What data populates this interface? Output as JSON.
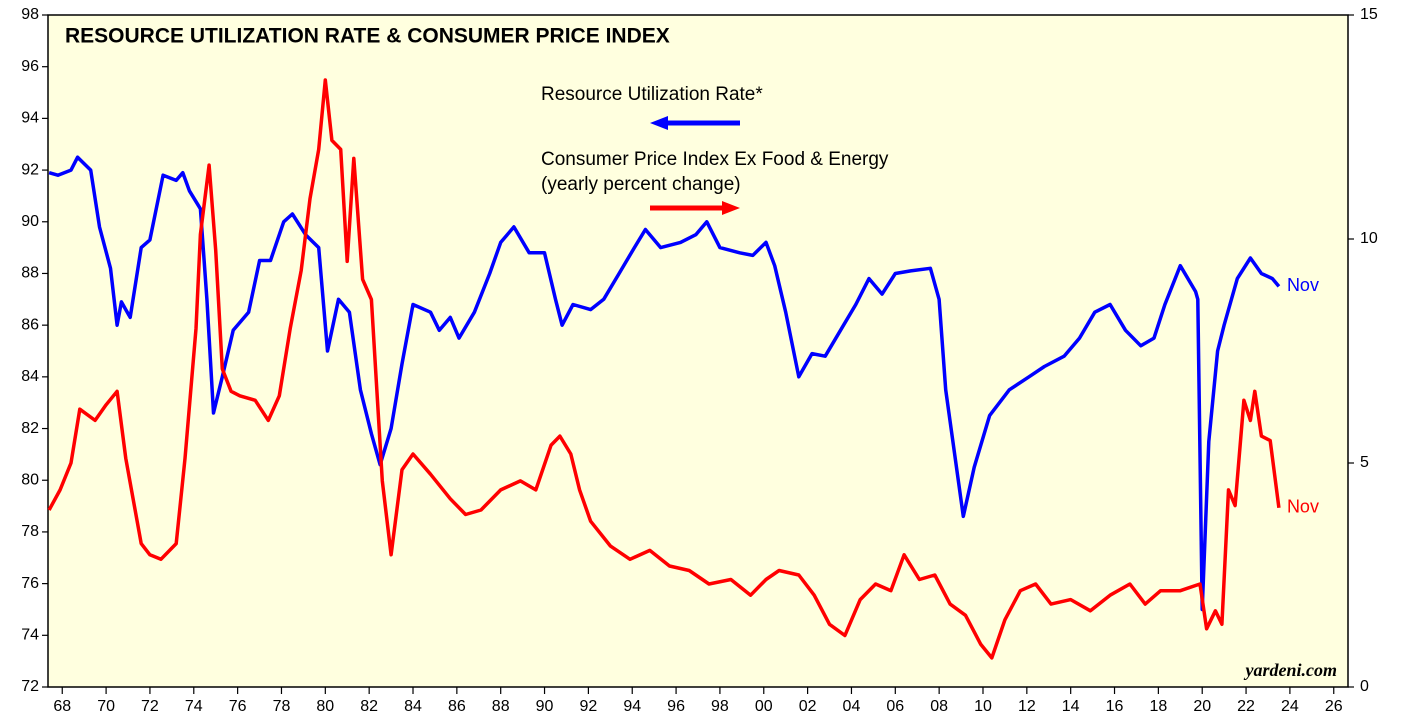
{
  "chart_data": {
    "type": "line",
    "title": "RESOURCE UTILIZATION RATE & CONSUMER PRICE INDEX",
    "legend_note": "(yearly percent change)",
    "watermark": "yardeni.com",
    "xlim": [
      1967.35,
      2026.65
    ],
    "xticks": [
      {
        "value": 1968,
        "label": "68"
      },
      {
        "value": 1970,
        "label": "70"
      },
      {
        "value": 1972,
        "label": "72"
      },
      {
        "value": 1974,
        "label": "74"
      },
      {
        "value": 1976,
        "label": "76"
      },
      {
        "value": 1978,
        "label": "78"
      },
      {
        "value": 1980,
        "label": "80"
      },
      {
        "value": 1982,
        "label": "82"
      },
      {
        "value": 1984,
        "label": "84"
      },
      {
        "value": 1986,
        "label": "86"
      },
      {
        "value": 1988,
        "label": "88"
      },
      {
        "value": 1990,
        "label": "90"
      },
      {
        "value": 1992,
        "label": "92"
      },
      {
        "value": 1994,
        "label": "94"
      },
      {
        "value": 1996,
        "label": "96"
      },
      {
        "value": 1998,
        "label": "98"
      },
      {
        "value": 2000,
        "label": "00"
      },
      {
        "value": 2002,
        "label": "02"
      },
      {
        "value": 2004,
        "label": "04"
      },
      {
        "value": 2006,
        "label": "06"
      },
      {
        "value": 2008,
        "label": "08"
      },
      {
        "value": 2010,
        "label": "10"
      },
      {
        "value": 2012,
        "label": "12"
      },
      {
        "value": 2014,
        "label": "14"
      },
      {
        "value": 2016,
        "label": "16"
      },
      {
        "value": 2018,
        "label": "18"
      },
      {
        "value": 2020,
        "label": "20"
      },
      {
        "value": 2022,
        "label": "22"
      },
      {
        "value": 2024,
        "label": "24"
      },
      {
        "value": 2026,
        "label": "26"
      }
    ],
    "ylim": [
      72,
      98
    ],
    "yticks": [
      72,
      74,
      76,
      78,
      80,
      82,
      84,
      86,
      88,
      90,
      92,
      94,
      96,
      98
    ],
    "y2lim": [
      0,
      15
    ],
    "y2ticks": [
      0,
      5,
      10,
      15
    ],
    "series": [
      {
        "name": "Resource Utilization Rate*",
        "color": "#0000ff",
        "axis": "y",
        "end_label": "Nov",
        "x": [
          1967.4,
          1967.8,
          1968.4,
          1968.7,
          1969.3,
          1969.7,
          1970.2,
          1970.5,
          1970.7,
          1971.1,
          1971.6,
          1972,
          1972.6,
          1973.2,
          1973.5,
          1973.8,
          1974.3,
          1974.6,
          1974.9,
          1975.3,
          1975.8,
          1976.5,
          1977.0,
          1977.5,
          1978.1,
          1978.5,
          1979.1,
          1979.7,
          1980.1,
          1980.6,
          1981.1,
          1981.6,
          1982.1,
          1982.5,
          1983,
          1983.5,
          1984,
          1984.8,
          1985.2,
          1985.7,
          1986.1,
          1986.8,
          1987.5,
          1988,
          1988.6,
          1989.3,
          1990,
          1990.5,
          1990.8,
          1991.3,
          1992.1,
          1992.7,
          1993.4,
          1994.1,
          1994.6,
          1995.3,
          1996.2,
          1996.9,
          1997.4,
          1998,
          1998.9,
          1999.5,
          2000.1,
          2000.5,
          2001,
          2001.6,
          2002.2,
          2002.8,
          2003.5,
          2004.2,
          2004.8,
          2005.4,
          2006,
          2006.7,
          2007.6,
          2008,
          2008.3,
          2009.1,
          2009.6,
          2010.3,
          2011.2,
          2012.1,
          2012.8,
          2013.7,
          2014.4,
          2015.1,
          2015.8,
          2016.5,
          2017.2,
          2017.8,
          2018.3,
          2019,
          2019.7,
          2019.8,
          2020.0,
          2020.3,
          2020.7,
          2021,
          2021.6,
          2022.2,
          2022.7,
          2023.2,
          2023.5
        ],
        "values": [
          91.9,
          91.8,
          92.0,
          92.5,
          92.0,
          89.8,
          88.2,
          86.0,
          86.9,
          86.3,
          89.0,
          89.3,
          91.8,
          91.6,
          91.9,
          91.2,
          90.5,
          87.0,
          82.6,
          84.0,
          85.8,
          86.5,
          88.5,
          88.5,
          90.0,
          90.3,
          89.5,
          89.0,
          85.0,
          87.0,
          86.5,
          83.5,
          81.8,
          80.6,
          82.0,
          84.5,
          86.8,
          86.5,
          85.8,
          86.3,
          85.5,
          86.5,
          88.0,
          89.2,
          89.8,
          88.8,
          88.8,
          87.0,
          86.0,
          86.8,
          86.6,
          87.0,
          88.0,
          89.0,
          89.7,
          89.0,
          89.2,
          89.5,
          90.0,
          89.0,
          88.8,
          88.7,
          89.2,
          88.3,
          86.5,
          84.0,
          84.9,
          84.8,
          85.8,
          86.8,
          87.8,
          87.2,
          88.0,
          88.1,
          88.2,
          87.0,
          83.5,
          78.6,
          80.5,
          82.5,
          83.5,
          84.0,
          84.4,
          84.8,
          85.5,
          86.5,
          86.8,
          85.8,
          85.2,
          85.5,
          86.8,
          88.3,
          87.3,
          87.0,
          75.0,
          81.5,
          85.0,
          86.0,
          87.8,
          88.6,
          88.0,
          87.8,
          87.5
        ]
      },
      {
        "name": "Consumer Price Index Ex Food & Energy",
        "color": "#ff0000",
        "axis": "y2",
        "end_label": "Nov",
        "x": [
          1967.4,
          1967.9,
          1968.4,
          1968.8,
          1969.5,
          1970,
          1970.5,
          1970.9,
          1971.6,
          1972,
          1972.5,
          1973.2,
          1973.6,
          1974.1,
          1974.3,
          1974.7,
          1975,
          1975.3,
          1975.7,
          1976.1,
          1976.8,
          1977.4,
          1977.9,
          1978.4,
          1978.9,
          1979.3,
          1979.7,
          1980.0,
          1980.3,
          1980.7,
          1981,
          1981.3,
          1981.7,
          1982.1,
          1982.6,
          1983,
          1983.5,
          1984,
          1984.8,
          1985.7,
          1986.4,
          1987.1,
          1988,
          1988.9,
          1989.6,
          1990.3,
          1990.7,
          1991.2,
          1991.6,
          1992.1,
          1993,
          1993.9,
          1994.8,
          1995.7,
          1996.6,
          1997.5,
          1998.5,
          1999.4,
          2000.1,
          2000.7,
          2001.6,
          2002.3,
          2003,
          2003.7,
          2004.4,
          2005.1,
          2005.8,
          2006.4,
          2007.1,
          2007.8,
          2008.5,
          2009.2,
          2009.9,
          2010.4,
          2011,
          2011.7,
          2012.4,
          2013.1,
          2014,
          2014.9,
          2015.8,
          2016.7,
          2017.4,
          2018.1,
          2019,
          2019.9,
          2020.2,
          2020.6,
          2020.9,
          2021.2,
          2021.5,
          2021.9,
          2022.2,
          2022.4,
          2022.7,
          2023.1,
          2023.5
        ],
        "values": [
          3.95,
          4.4,
          5.0,
          6.2,
          5.95,
          6.3,
          6.6,
          5.1,
          3.2,
          2.95,
          2.85,
          3.2,
          5.1,
          8.0,
          10.1,
          11.65,
          9.75,
          7.1,
          6.6,
          6.5,
          6.4,
          5.95,
          6.5,
          8.0,
          9.3,
          10.9,
          12.0,
          13.55,
          12.2,
          12.0,
          9.5,
          11.8,
          9.1,
          8.65,
          4.6,
          2.95,
          4.85,
          5.2,
          4.75,
          4.2,
          3.85,
          3.95,
          4.4,
          4.6,
          4.4,
          5.4,
          5.6,
          5.2,
          4.4,
          3.7,
          3.15,
          2.85,
          3.05,
          2.7,
          2.6,
          2.3,
          2.4,
          2.05,
          2.4,
          2.6,
          2.5,
          2.05,
          1.4,
          1.15,
          1.95,
          2.3,
          2.15,
          2.95,
          2.4,
          2.5,
          1.85,
          1.6,
          0.95,
          0.65,
          1.5,
          2.15,
          2.3,
          1.85,
          1.95,
          1.7,
          2.05,
          2.3,
          1.85,
          2.15,
          2.15,
          2.3,
          1.3,
          1.7,
          1.4,
          4.4,
          4.05,
          6.4,
          5.95,
          6.6,
          5.6,
          5.5,
          4.0
        ]
      }
    ]
  }
}
